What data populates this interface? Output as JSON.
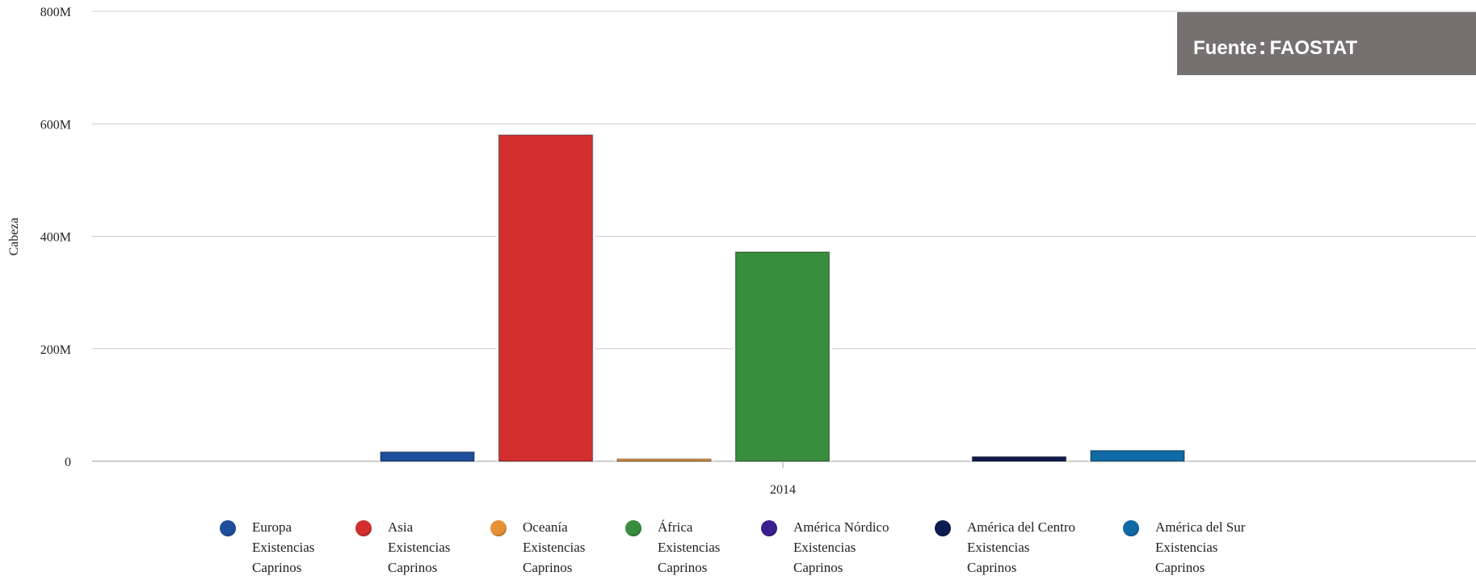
{
  "source": {
    "label": "Fuente",
    "colon": ":",
    "value": "FAOSTAT"
  },
  "chart_data": {
    "type": "bar",
    "categories": [
      "2014"
    ],
    "ylabel": "Cabeza",
    "xlabel": "",
    "ylim": [
      0,
      800000000
    ],
    "yticks": [
      {
        "value": 0,
        "label": "0"
      },
      {
        "value": 200000000,
        "label": "200M"
      },
      {
        "value": 400000000,
        "label": "400M"
      },
      {
        "value": 600000000,
        "label": "600M"
      },
      {
        "value": 800000000,
        "label": "800M"
      }
    ],
    "grid": true,
    "legend_position": "bottom",
    "series": [
      {
        "name": [
          "Europa",
          "Existencias",
          "Caprinos"
        ],
        "color": "#1f4e9c",
        "values": [
          16500000
        ]
      },
      {
        "name": [
          "Asia",
          "Existencias",
          "Caprinos"
        ],
        "color": "#d32f2f",
        "values": [
          580000000
        ]
      },
      {
        "name": [
          "Oceanía",
          "Existencias",
          "Caprinos"
        ],
        "color": "#e69138",
        "values": [
          3800000
        ]
      },
      {
        "name": [
          "África",
          "Existencias",
          "Caprinos"
        ],
        "color": "#388e3c",
        "values": [
          372000000
        ]
      },
      {
        "name": [
          "América Nórdico",
          "Existencias",
          "Caprinos"
        ],
        "color": "#3b1f8f",
        "values": [
          0
        ]
      },
      {
        "name": [
          "América del Centro",
          "Existencias",
          "Caprinos"
        ],
        "color": "#0d1b4f",
        "values": [
          8000000
        ]
      },
      {
        "name": [
          "América del Sur",
          "Existencias",
          "Caprinos"
        ],
        "color": "#0f6aa6",
        "values": [
          19000000
        ]
      }
    ]
  }
}
